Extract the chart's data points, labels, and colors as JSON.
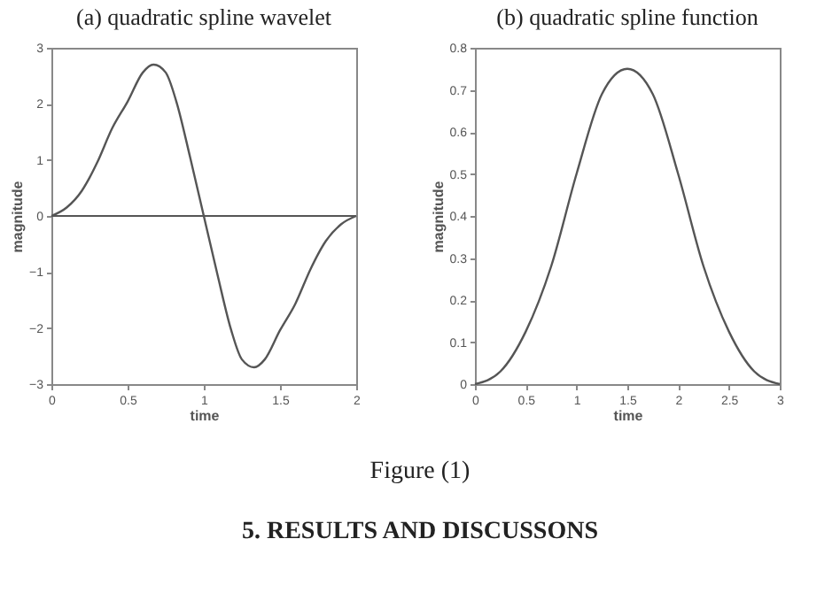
{
  "chart_data": [
    {
      "type": "line",
      "title": "(a) quadratic spline wavelet",
      "xlabel": "time",
      "ylabel": "magnitude",
      "xlim": [
        0,
        2
      ],
      "ylim": [
        -3,
        3
      ],
      "xticks": [
        0,
        0.5,
        1,
        1.5,
        2
      ],
      "yticks": [
        -3,
        -2,
        -1,
        0,
        1,
        2,
        3
      ],
      "grid": false,
      "marker": "none",
      "line_style": "solid",
      "ref_lines": [
        {
          "axis": "y",
          "value": 0,
          "color": "#555555"
        }
      ],
      "x": [
        0,
        0.1,
        0.2,
        0.25,
        0.3,
        0.4,
        0.5,
        0.6,
        0.67,
        0.75,
        0.82,
        0.91,
        1,
        1.09,
        1.18,
        1.25,
        1.33,
        1.4,
        1.5,
        1.6,
        1.7,
        1.75,
        1.8,
        1.9,
        2
      ],
      "series": [
        {
          "color": "#555555",
          "values": [
            0,
            0.15,
            0.45,
            0.68,
            0.95,
            1.57,
            2.04,
            2.56,
            2.7,
            2.56,
            2.04,
            1.05,
            0,
            -1.05,
            -2.04,
            -2.56,
            -2.7,
            -2.56,
            -2.04,
            -1.57,
            -0.95,
            -0.68,
            -0.45,
            -0.15,
            0
          ]
        }
      ]
    },
    {
      "type": "line",
      "title": "(b) quadratic spline function",
      "xlabel": "time",
      "ylabel": "magnitude",
      "xlim": [
        0,
        3
      ],
      "ylim": [
        0,
        0.8
      ],
      "xticks": [
        0,
        0.5,
        1,
        1.5,
        2,
        2.5,
        3
      ],
      "yticks": [
        0,
        0.1,
        0.2,
        0.3,
        0.4,
        0.5,
        0.6,
        0.7,
        0.8
      ],
      "grid": false,
      "marker": "none",
      "line_style": "solid",
      "x": [
        0,
        0.25,
        0.5,
        0.75,
        1,
        1.25,
        1.5,
        1.75,
        2,
        2.25,
        2.5,
        2.75,
        3
      ],
      "series": [
        {
          "color": "#555555",
          "values": [
            0,
            0.03,
            0.125,
            0.28,
            0.5,
            0.69,
            0.75,
            0.69,
            0.5,
            0.28,
            0.125,
            0.03,
            0
          ]
        }
      ],
      "annotations": [
        "Figure (1)",
        "5.   RESULTS AND DISCUSSONS"
      ]
    }
  ]
}
